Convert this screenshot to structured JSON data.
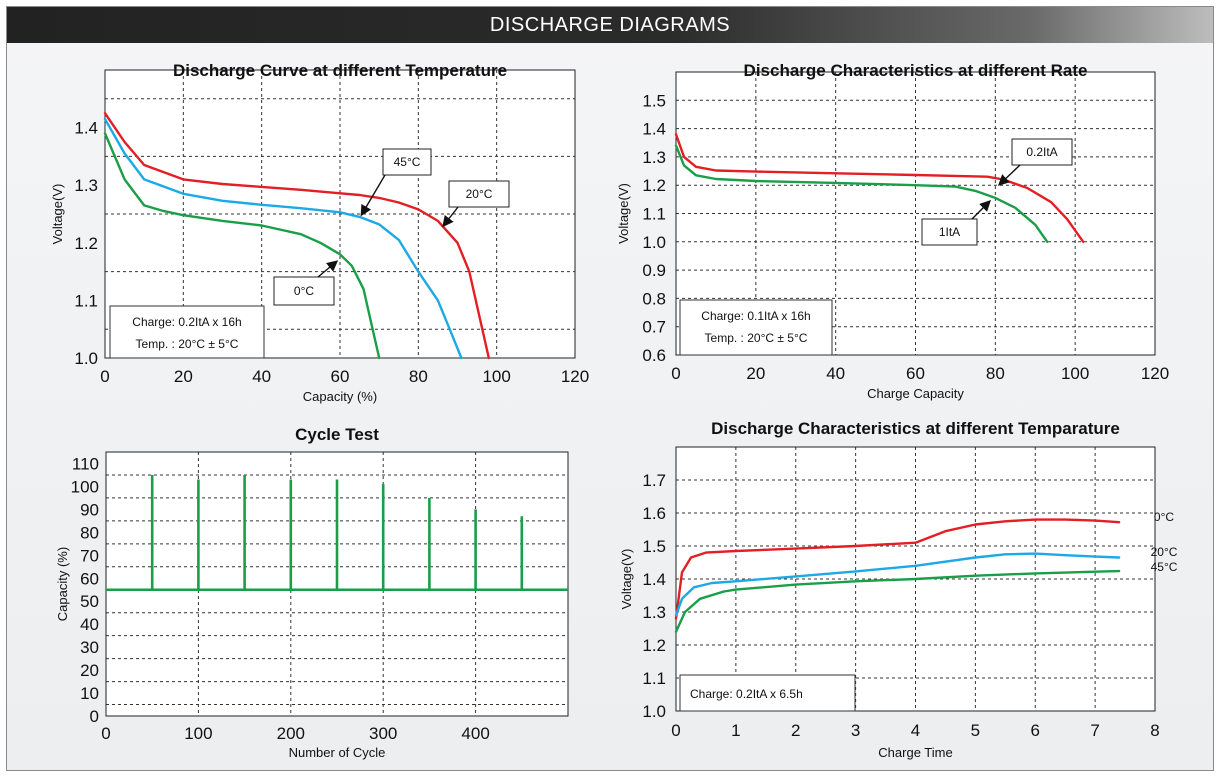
{
  "banner": {
    "title": "DISCHARGE DIAGRAMS"
  },
  "chart_data": [
    {
      "id": "temp_curve",
      "type": "line",
      "title": "Discharge Curve at different Temperature",
      "xlabel": "Capacity (%)",
      "ylabel": "Voltage(V)",
      "xlim": [
        0,
        120
      ],
      "ylim": [
        1.0,
        1.5
      ],
      "xticks": [
        0,
        20,
        40,
        60,
        80,
        100,
        120
      ],
      "yticks": [
        1.0,
        1.1,
        1.2,
        1.3,
        1.4
      ],
      "ytick_labels": [
        "1.0",
        "1.1",
        "1.2",
        "1.3",
        "1.4"
      ],
      "xgrid": [
        0,
        20,
        40,
        60,
        80,
        100,
        120
      ],
      "ygrid": [
        1.05,
        1.15,
        1.25,
        1.35,
        1.45
      ],
      "grid": true,
      "notes": [
        "Charge: 0.2ItA x 16h",
        "Temp. : 20°C ± 5°C"
      ],
      "series": [
        {
          "name": "20°C",
          "color": "#e31e24",
          "points": [
            [
              0,
              1.425
            ],
            [
              5,
              1.375
            ],
            [
              10,
              1.335
            ],
            [
              20,
              1.31
            ],
            [
              30,
              1.302
            ],
            [
              40,
              1.297
            ],
            [
              50,
              1.292
            ],
            [
              60,
              1.286
            ],
            [
              65,
              1.283
            ],
            [
              70,
              1.278
            ],
            [
              75,
              1.27
            ],
            [
              80,
              1.258
            ],
            [
              85,
              1.238
            ],
            [
              90,
              1.2
            ],
            [
              93,
              1.15
            ],
            [
              96,
              1.06
            ],
            [
              98,
              1.0
            ]
          ]
        },
        {
          "name": "45°C",
          "color": "#1ca9e6",
          "points": [
            [
              0,
              1.415
            ],
            [
              5,
              1.355
            ],
            [
              10,
              1.31
            ],
            [
              20,
              1.285
            ],
            [
              30,
              1.273
            ],
            [
              40,
              1.266
            ],
            [
              50,
              1.26
            ],
            [
              60,
              1.253
            ],
            [
              65,
              1.245
            ],
            [
              70,
              1.232
            ],
            [
              75,
              1.205
            ],
            [
              80,
              1.15
            ],
            [
              85,
              1.1
            ],
            [
              88,
              1.05
            ],
            [
              91,
              1.0
            ]
          ]
        },
        {
          "name": "0°C",
          "color": "#1a9e48",
          "points": [
            [
              0,
              1.39
            ],
            [
              5,
              1.31
            ],
            [
              10,
              1.265
            ],
            [
              15,
              1.255
            ],
            [
              20,
              1.248
            ],
            [
              30,
              1.238
            ],
            [
              40,
              1.23
            ],
            [
              50,
              1.215
            ],
            [
              55,
              1.2
            ],
            [
              60,
              1.18
            ],
            [
              63,
              1.16
            ],
            [
              66,
              1.12
            ],
            [
              68,
              1.06
            ],
            [
              70,
              1.0
            ]
          ]
        }
      ],
      "annotations": [
        "45°C",
        "20°C",
        "0°C"
      ]
    },
    {
      "id": "rate_curve",
      "type": "line",
      "title": "Discharge Characteristics at different Rate",
      "xlabel": "Charge Capacity",
      "ylabel": "Voltage(V)",
      "xlim": [
        0,
        120
      ],
      "ylim": [
        0.6,
        1.6
      ],
      "xticks": [
        0,
        20,
        40,
        60,
        80,
        100,
        120
      ],
      "yticks": [
        0.6,
        0.7,
        0.8,
        0.9,
        1.0,
        1.1,
        1.2,
        1.3,
        1.4,
        1.5
      ],
      "ytick_labels": [
        "0.6",
        "0.7",
        "0.8",
        "0.9",
        "1.0",
        "1.1",
        "1.2",
        "1.3",
        "1.4",
        "1.5"
      ],
      "xgrid": [
        0,
        20,
        40,
        60,
        80,
        100,
        120
      ],
      "ygrid": [
        0.7,
        0.8,
        0.9,
        1.0,
        1.1,
        1.2,
        1.3,
        1.4,
        1.5
      ],
      "grid": true,
      "notes": [
        "Charge: 0.1ItA x 16h",
        "Temp. : 20°C ± 5°C"
      ],
      "series": [
        {
          "name": "0.2ItA",
          "color": "#e31e24",
          "points": [
            [
              0,
              1.38
            ],
            [
              2,
              1.3
            ],
            [
              5,
              1.265
            ],
            [
              10,
              1.252
            ],
            [
              20,
              1.248
            ],
            [
              40,
              1.242
            ],
            [
              60,
              1.236
            ],
            [
              70,
              1.233
            ],
            [
              78,
              1.23
            ],
            [
              82,
              1.22
            ],
            [
              88,
              1.19
            ],
            [
              94,
              1.14
            ],
            [
              98,
              1.08
            ],
            [
              102,
              1.0
            ]
          ]
        },
        {
          "name": "1ItA",
          "color": "#1a9e48",
          "points": [
            [
              0,
              1.34
            ],
            [
              2,
              1.27
            ],
            [
              5,
              1.235
            ],
            [
              10,
              1.222
            ],
            [
              20,
              1.215
            ],
            [
              40,
              1.208
            ],
            [
              60,
              1.2
            ],
            [
              70,
              1.195
            ],
            [
              75,
              1.18
            ],
            [
              80,
              1.155
            ],
            [
              85,
              1.12
            ],
            [
              90,
              1.06
            ],
            [
              93,
              1.0
            ]
          ]
        }
      ],
      "annotations": [
        "0.2ItA",
        "1ItA"
      ]
    },
    {
      "id": "cycle_test",
      "type": "bar",
      "title": "Cycle Test",
      "xlabel": "Number of Cycle",
      "ylabel": "Capacity (%)",
      "xlim": [
        0,
        500
      ],
      "ylim": [
        0,
        115
      ],
      "xticks": [
        0,
        100,
        200,
        300,
        400
      ],
      "yticks": [
        0,
        10,
        20,
        30,
        40,
        50,
        60,
        70,
        80,
        90,
        100,
        110
      ],
      "ytick_labels": [
        "0",
        "10",
        "20",
        "30",
        "40",
        "50",
        "60",
        "70",
        "80",
        "90",
        "100",
        "110"
      ],
      "xgrid": [
        0,
        100,
        200,
        300,
        400
      ],
      "ygrid": [
        5,
        15,
        25,
        35,
        45,
        55,
        65,
        75,
        85,
        95,
        105,
        115
      ],
      "grid": true,
      "baseline": 55,
      "color": "#1a9e48",
      "x": [
        50,
        100,
        150,
        200,
        250,
        300,
        350,
        400,
        450
      ],
      "values": [
        105,
        103,
        105,
        103,
        103,
        101,
        95,
        90,
        87
      ]
    },
    {
      "id": "charge_temp",
      "type": "line",
      "title": "Discharge Characteristics at different Temparature",
      "xlabel": "Charge Time",
      "ylabel": "Voltage(V)",
      "xlim": [
        0,
        8
      ],
      "ylim": [
        1.0,
        1.8
      ],
      "xticks": [
        0,
        1,
        2,
        3,
        4,
        5,
        6,
        7,
        8
      ],
      "yticks": [
        1.0,
        1.1,
        1.2,
        1.3,
        1.4,
        1.5,
        1.6,
        1.7
      ],
      "ytick_labels": [
        "1.0",
        "1.1",
        "1.2",
        "1.3",
        "1.4",
        "1.5",
        "1.6",
        "1.7"
      ],
      "xgrid": [
        0,
        1,
        2,
        3,
        4,
        5,
        6,
        7,
        8
      ],
      "ygrid": [
        1.1,
        1.2,
        1.3,
        1.4,
        1.5,
        1.6,
        1.7,
        1.8
      ],
      "grid": true,
      "notes": [
        "Charge: 0.2ItA x 6.5h"
      ],
      "series": [
        {
          "name": "0°C",
          "color": "#e31e24",
          "points": [
            [
              0,
              1.28
            ],
            [
              0.1,
              1.42
            ],
            [
              0.25,
              1.465
            ],
            [
              0.5,
              1.48
            ],
            [
              1,
              1.485
            ],
            [
              2,
              1.492
            ],
            [
              3,
              1.5
            ],
            [
              4,
              1.51
            ],
            [
              4.5,
              1.545
            ],
            [
              5,
              1.565
            ],
            [
              5.5,
              1.575
            ],
            [
              6,
              1.58
            ],
            [
              6.5,
              1.58
            ],
            [
              7,
              1.577
            ],
            [
              7.4,
              1.572
            ]
          ]
        },
        {
          "name": "20°C",
          "color": "#1ca9e6",
          "points": [
            [
              0,
              1.29
            ],
            [
              0.1,
              1.34
            ],
            [
              0.3,
              1.375
            ],
            [
              0.6,
              1.388
            ],
            [
              1,
              1.393
            ],
            [
              2,
              1.408
            ],
            [
              3,
              1.423
            ],
            [
              4,
              1.44
            ],
            [
              5,
              1.465
            ],
            [
              5.5,
              1.475
            ],
            [
              6,
              1.477
            ],
            [
              6.5,
              1.472
            ],
            [
              7,
              1.468
            ],
            [
              7.4,
              1.465
            ]
          ]
        },
        {
          "name": "45°C",
          "color": "#1a9e48",
          "points": [
            [
              0,
              1.24
            ],
            [
              0.15,
              1.3
            ],
            [
              0.4,
              1.34
            ],
            [
              0.8,
              1.362
            ],
            [
              1,
              1.368
            ],
            [
              2,
              1.383
            ],
            [
              3,
              1.393
            ],
            [
              4,
              1.4
            ],
            [
              5,
              1.41
            ],
            [
              6,
              1.417
            ],
            [
              7,
              1.422
            ],
            [
              7.4,
              1.424
            ]
          ]
        }
      ]
    }
  ]
}
